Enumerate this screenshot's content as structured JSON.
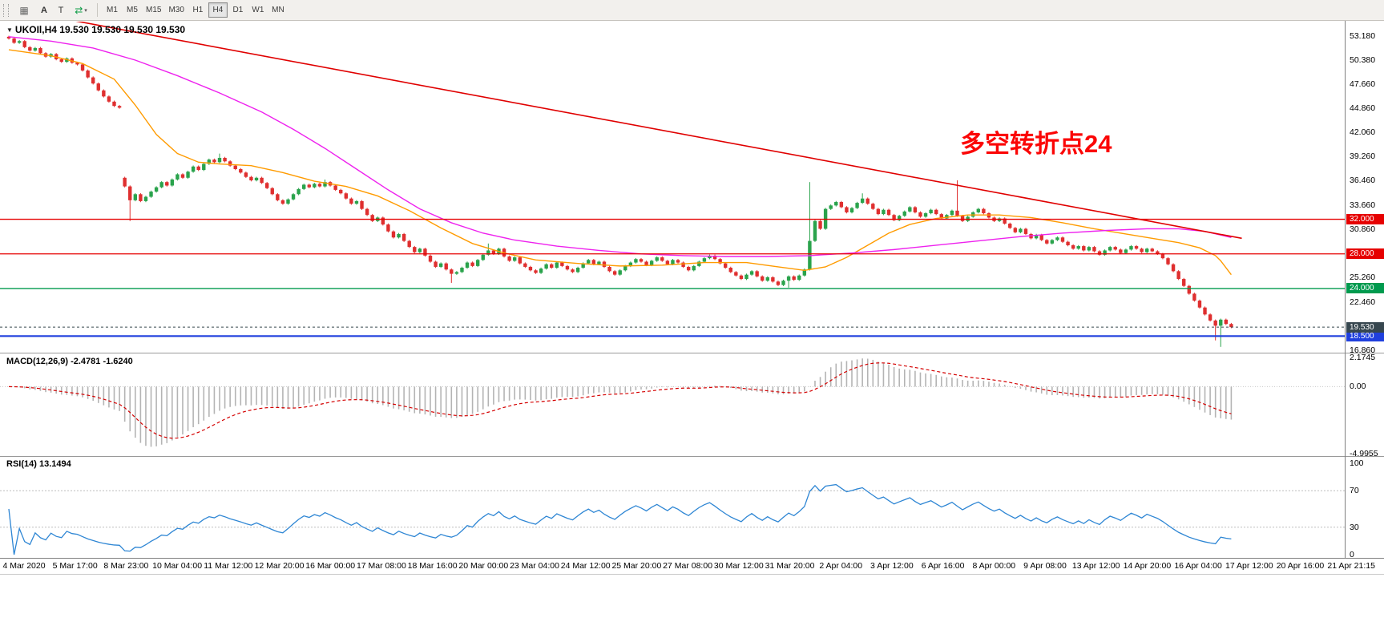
{
  "ui": {
    "toolbar": {
      "buttons": [
        "A",
        "T"
      ],
      "timeframes": [
        "M1",
        "M5",
        "M15",
        "M30",
        "H1",
        "H4",
        "D1",
        "W1",
        "MN"
      ],
      "active_timeframe": "H4"
    }
  },
  "chart_data": {
    "type": "candlestick",
    "symbol_info": "UKOIl,H4 19.530 19.530 19.530 19.530",
    "annotation": {
      "text": "多空转折点24",
      "color": "#fb0606"
    },
    "colors": {
      "up": "#2aa34c",
      "down": "#df2f2f",
      "ma_fast": "#ff9b00",
      "ma_slow": "#ee22ee",
      "trend": "#e00000",
      "rsi": "#2e86d4",
      "macd_hist": "#b4b4b4",
      "macd_signal": "#d40000"
    },
    "price_axis": {
      "min": 16.86,
      "max": 53.18,
      "ticks": [
        "53.180",
        "50.380",
        "47.660",
        "44.860",
        "42.060",
        "39.260",
        "36.460",
        "33.660",
        "30.860",
        "28.060",
        "25.260",
        "22.460",
        "19.660",
        "16.860"
      ]
    },
    "hlines": [
      {
        "value": 32.0,
        "label": "32.000",
        "color": "#e60000",
        "width": 1.4
      },
      {
        "value": 28.0,
        "label": "28.000",
        "color": "#e60000",
        "width": 1.2
      },
      {
        "value": 24.0,
        "label": "24.000",
        "color": "#009a4e",
        "width": 1.4
      },
      {
        "value": 18.5,
        "label": "18.500",
        "color": "#2040dd",
        "width": 2.2
      }
    ],
    "current_price": {
      "value": 19.53,
      "label": "19.530",
      "color": "#37474f"
    },
    "candles": {
      "closes": [
        52.9,
        52.4,
        52.6,
        51.9,
        51.5,
        51.8,
        51.2,
        50.8,
        51.1,
        50.5,
        50.2,
        50.6,
        50.1,
        49.9,
        49.2,
        48.4,
        47.7,
        46.9,
        46.2,
        45.6,
        45.1,
        44.9,
        35.8,
        34.2,
        34.9,
        34.1,
        34.6,
        35.2,
        35.7,
        36.3,
        35.9,
        36.6,
        37.2,
        36.8,
        37.5,
        38.1,
        37.7,
        38.4,
        38.9,
        38.6,
        39.1,
        38.7,
        38.2,
        37.8,
        37.4,
        36.9,
        36.5,
        36.8,
        36.2,
        35.6,
        34.9,
        34.2,
        33.8,
        34.3,
        34.9,
        35.5,
        36.0,
        35.7,
        36.1,
        35.8,
        36.3,
        35.9,
        35.4,
        35.0,
        34.4,
        33.8,
        34.1,
        33.2,
        32.5,
        31.8,
        32.2,
        31.4,
        30.6,
        29.9,
        30.3,
        29.5,
        28.8,
        28.2,
        28.6,
        27.8,
        27.1,
        26.5,
        26.9,
        26.2,
        25.7,
        25.9,
        26.4,
        27.0,
        26.6,
        27.3,
        27.9,
        28.4,
        28.0,
        28.6,
        27.7,
        27.2,
        27.6,
        26.9,
        26.5,
        26.1,
        25.8,
        26.3,
        26.8,
        26.4,
        27.0,
        26.6,
        26.2,
        25.9,
        26.4,
        26.9,
        27.3,
        26.8,
        27.1,
        26.5,
        26.0,
        25.6,
        26.1,
        26.6,
        27.0,
        27.4,
        27.1,
        26.7,
        27.2,
        27.6,
        27.2,
        26.8,
        27.3,
        27.0,
        26.5,
        26.1,
        26.6,
        27.1,
        27.5,
        27.8,
        27.4,
        26.9,
        26.4,
        25.9,
        25.5,
        25.1,
        25.6,
        26.0,
        25.4,
        24.9,
        25.3,
        24.8,
        24.4,
        24.9,
        25.4,
        25.0,
        25.5,
        26.2,
        29.5,
        31.8,
        30.9,
        33.2,
        33.6,
        34.0,
        33.4,
        32.8,
        33.3,
        33.9,
        34.4,
        33.8,
        33.2,
        32.6,
        33.1,
        32.5,
        31.9,
        32.4,
        32.9,
        33.4,
        32.8,
        32.3,
        32.7,
        33.1,
        32.6,
        32.1,
        32.5,
        33.0,
        32.4,
        31.8,
        32.3,
        32.8,
        33.2,
        32.7,
        32.2,
        31.8,
        32.1,
        31.5,
        31.0,
        30.5,
        30.9,
        30.3,
        29.8,
        30.2,
        29.6,
        29.2,
        29.6,
        29.9,
        29.4,
        29.0,
        28.6,
        28.9,
        28.4,
        28.8,
        28.3,
        27.9,
        28.4,
        28.8,
        28.5,
        28.1,
        28.5,
        28.9,
        28.6,
        28.2,
        28.6,
        28.3,
        28.0,
        27.5,
        26.8,
        26.0,
        25.1,
        24.3,
        23.4,
        22.6,
        21.8,
        21.0,
        20.3,
        19.7,
        20.4,
        19.9,
        19.53
      ],
      "open_overrides": {
        "0": 53.1,
        "22": 36.8
      },
      "wick_overrides": [
        [
          23,
          null,
          31.8
        ],
        [
          40,
          39.6,
          null
        ],
        [
          60,
          36.6,
          null
        ],
        [
          84,
          null,
          24.65
        ],
        [
          91,
          29.2,
          null
        ],
        [
          148,
          null,
          24.1
        ],
        [
          152,
          36.3,
          null
        ],
        [
          162,
          35.0,
          null
        ],
        [
          180,
          36.5,
          null
        ],
        [
          229,
          null,
          18.0
        ],
        [
          230,
          null,
          17.25
        ]
      ]
    },
    "ma_fast_points": [
      [
        0,
        51.6
      ],
      [
        8,
        50.9
      ],
      [
        14,
        50.0
      ],
      [
        20,
        48.2
      ],
      [
        24,
        45.2
      ],
      [
        28,
        41.8
      ],
      [
        32,
        39.6
      ],
      [
        36,
        38.6
      ],
      [
        40,
        38.4
      ],
      [
        46,
        38.2
      ],
      [
        52,
        37.4
      ],
      [
        58,
        36.4
      ],
      [
        64,
        35.8
      ],
      [
        70,
        34.7
      ],
      [
        76,
        33.0
      ],
      [
        82,
        31.0
      ],
      [
        88,
        29.2
      ],
      [
        94,
        28.1
      ],
      [
        100,
        27.3
      ],
      [
        108,
        26.9
      ],
      [
        116,
        26.6
      ],
      [
        124,
        26.7
      ],
      [
        132,
        27.0
      ],
      [
        140,
        27.0
      ],
      [
        146,
        26.5
      ],
      [
        151,
        26.1
      ],
      [
        155,
        26.5
      ],
      [
        159,
        27.6
      ],
      [
        163,
        29.0
      ],
      [
        167,
        30.4
      ],
      [
        171,
        31.4
      ],
      [
        176,
        32.1
      ],
      [
        182,
        32.5
      ],
      [
        188,
        32.5
      ],
      [
        194,
        32.2
      ],
      [
        200,
        31.6
      ],
      [
        206,
        30.9
      ],
      [
        212,
        30.3
      ],
      [
        218,
        29.7
      ],
      [
        222,
        29.3
      ],
      [
        226,
        28.7
      ],
      [
        229,
        27.8
      ],
      [
        230,
        27.2
      ],
      [
        232,
        25.6
      ]
    ],
    "ma_slow_points": [
      [
        0,
        53.1
      ],
      [
        8,
        52.6
      ],
      [
        16,
        51.8
      ],
      [
        24,
        50.4
      ],
      [
        32,
        48.6
      ],
      [
        40,
        46.6
      ],
      [
        48,
        44.4
      ],
      [
        54,
        42.4
      ],
      [
        60,
        40.2
      ],
      [
        66,
        37.8
      ],
      [
        72,
        35.4
      ],
      [
        78,
        33.2
      ],
      [
        84,
        31.6
      ],
      [
        90,
        30.4
      ],
      [
        96,
        29.6
      ],
      [
        104,
        28.9
      ],
      [
        112,
        28.4
      ],
      [
        120,
        28.0
      ],
      [
        128,
        27.8
      ],
      [
        136,
        27.7
      ],
      [
        144,
        27.7
      ],
      [
        152,
        27.8
      ],
      [
        160,
        28.1
      ],
      [
        168,
        28.5
      ],
      [
        176,
        29.0
      ],
      [
        184,
        29.5
      ],
      [
        192,
        30.0
      ],
      [
        200,
        30.4
      ],
      [
        208,
        30.7
      ],
      [
        216,
        30.9
      ],
      [
        222,
        30.9
      ],
      [
        227,
        30.6
      ],
      [
        232,
        29.9
      ]
    ],
    "trendline": [
      [
        12,
        55.0
      ],
      [
        234,
        29.8
      ]
    ],
    "macd": {
      "title": "MACD(12,26,9) -2.4781 -1.6240",
      "params": [
        12,
        26,
        9
      ],
      "ylim": [
        -4.9955,
        2.1745
      ],
      "ticks": [
        {
          "v": 2.1745,
          "label": "2.1745"
        },
        {
          "v": 0,
          "label": "0.00"
        },
        {
          "v": -4.9955,
          "label": "-4.9955"
        }
      ]
    },
    "rsi": {
      "title": "RSI(14) 13.1494",
      "period": 14,
      "ylim": [
        0,
        100
      ],
      "levels": [
        30,
        70
      ],
      "ticks": [
        {
          "v": 100,
          "label": "100"
        },
        {
          "v": 70,
          "label": "70"
        },
        {
          "v": 30,
          "label": "30"
        },
        {
          "v": 0,
          "label": "0"
        }
      ]
    },
    "time_axis": [
      "4 Mar 2020",
      "5 Mar 17:00",
      "8 Mar 23:00",
      "10 Mar 04:00",
      "11 Mar 12:00",
      "12 Mar 20:00",
      "16 Mar 00:00",
      "17 Mar 08:00",
      "18 Mar 16:00",
      "20 Mar 00:00",
      "23 Mar 04:00",
      "24 Mar 12:00",
      "25 Mar 20:00",
      "27 Mar 08:00",
      "30 Mar 12:00",
      "31 Mar 20:00",
      "2 Apr 04:00",
      "3 Apr 12:00",
      "6 Apr 16:00",
      "8 Apr 00:00",
      "9 Apr 08:00",
      "13 Apr 12:00",
      "14 Apr 20:00",
      "16 Apr 04:00",
      "17 Apr 12:00",
      "20 Apr 16:00",
      "21 Apr 21:15"
    ]
  }
}
